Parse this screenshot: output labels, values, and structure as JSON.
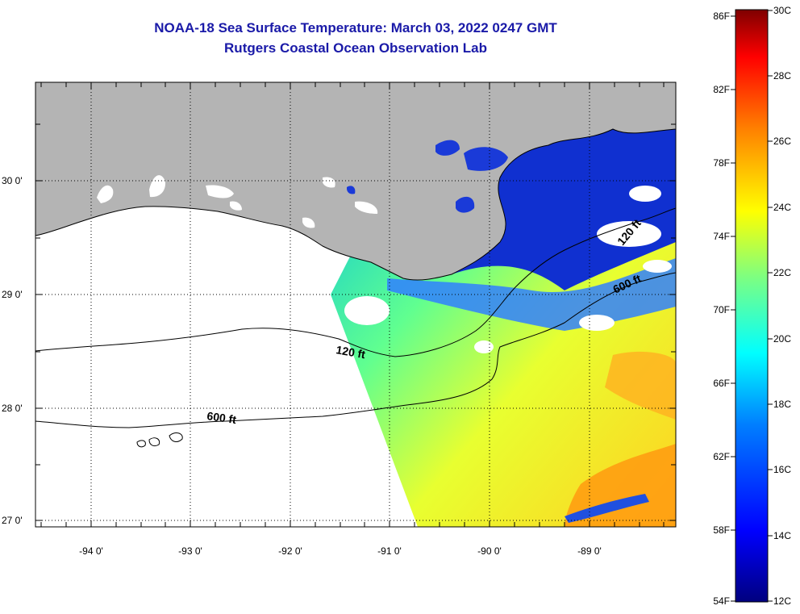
{
  "header": {
    "title": "NOAA-18 Sea Surface Temperature:  March 03, 2022 0247 GMT",
    "subtitle": "Rutgers Coastal Ocean Observation Lab"
  },
  "map": {
    "longitude_labels": [
      "-94 0'",
      "-93 0'",
      "-92 0'",
      "-91 0'",
      "-90 0'",
      "-89 0'"
    ],
    "latitude_labels": [
      "30 0'",
      "29 0'",
      "28 0'",
      "27 0'"
    ],
    "contour_labels": [
      "120 ft",
      "600 ft",
      "600 ft",
      "120 ft"
    ]
  },
  "colorbar": {
    "fahrenheit_labels": [
      "86F",
      "82F",
      "78F",
      "74F",
      "70F",
      "66F",
      "62F",
      "58F",
      "54F"
    ],
    "celsius_labels": [
      "30C",
      "28C",
      "26C",
      "24C",
      "22C",
      "20C",
      "18C",
      "16C",
      "14C",
      "12C"
    ],
    "colors": [
      "#00007f",
      "#0000ff",
      "#007fff",
      "#00ffff",
      "#7fff7f",
      "#ffff00",
      "#ff7f00",
      "#ff0000",
      "#7f0000"
    ]
  }
}
